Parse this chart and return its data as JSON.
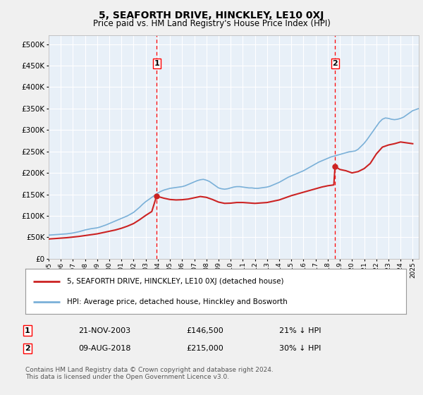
{
  "title": "5, SEAFORTH DRIVE, HINCKLEY, LE10 0XJ",
  "subtitle": "Price paid vs. HM Land Registry's House Price Index (HPI)",
  "yticks": [
    0,
    50000,
    100000,
    150000,
    200000,
    250000,
    300000,
    350000,
    400000,
    450000,
    500000
  ],
  "ytick_labels": [
    "£0",
    "£50K",
    "£100K",
    "£150K",
    "£200K",
    "£250K",
    "£300K",
    "£350K",
    "£400K",
    "£450K",
    "£500K"
  ],
  "xlim_start": 1995.0,
  "xlim_end": 2025.5,
  "ylim_min": 0,
  "ylim_max": 520000,
  "fig_bg_color": "#f0f0f0",
  "plot_bg_color": "#e8f0f8",
  "grid_color": "#ffffff",
  "hpi_color": "#7ab0d8",
  "price_color": "#cc2222",
  "marker1_year": 2003.9,
  "marker1_price": 146500,
  "marker2_year": 2018.6,
  "marker2_price": 215000,
  "legend_label_price": "5, SEAFORTH DRIVE, HINCKLEY, LE10 0XJ (detached house)",
  "legend_label_hpi": "HPI: Average price, detached house, Hinckley and Bosworth",
  "annotation1_label": "1",
  "annotation1_date": "21-NOV-2003",
  "annotation1_price": "£146,500",
  "annotation1_hpi": "21% ↓ HPI",
  "annotation2_label": "2",
  "annotation2_date": "09-AUG-2018",
  "annotation2_price": "£215,000",
  "annotation2_hpi": "30% ↓ HPI",
  "footer": "Contains HM Land Registry data © Crown copyright and database right 2024.\nThis data is licensed under the Open Government Licence v3.0.",
  "hpi_data": [
    [
      1995.0,
      55000
    ],
    [
      1995.25,
      55500
    ],
    [
      1995.5,
      56000
    ],
    [
      1995.75,
      56500
    ],
    [
      1996.0,
      57000
    ],
    [
      1996.25,
      57500
    ],
    [
      1996.5,
      58000
    ],
    [
      1996.75,
      59000
    ],
    [
      1997.0,
      60000
    ],
    [
      1997.25,
      61500
    ],
    [
      1997.5,
      63000
    ],
    [
      1997.75,
      65000
    ],
    [
      1998.0,
      67000
    ],
    [
      1998.25,
      68500
    ],
    [
      1998.5,
      70000
    ],
    [
      1998.75,
      71000
    ],
    [
      1999.0,
      72000
    ],
    [
      1999.25,
      74000
    ],
    [
      1999.5,
      76500
    ],
    [
      1999.75,
      79000
    ],
    [
      2000.0,
      82000
    ],
    [
      2000.25,
      85000
    ],
    [
      2000.5,
      88000
    ],
    [
      2000.75,
      91000
    ],
    [
      2001.0,
      94000
    ],
    [
      2001.25,
      97000
    ],
    [
      2001.5,
      100000
    ],
    [
      2001.75,
      104000
    ],
    [
      2002.0,
      108000
    ],
    [
      2002.25,
      114000
    ],
    [
      2002.5,
      120000
    ],
    [
      2002.75,
      127000
    ],
    [
      2003.0,
      133000
    ],
    [
      2003.25,
      138000
    ],
    [
      2003.5,
      143000
    ],
    [
      2003.75,
      148000
    ],
    [
      2004.0,
      153000
    ],
    [
      2004.25,
      157000
    ],
    [
      2004.5,
      160000
    ],
    [
      2004.75,
      162000
    ],
    [
      2005.0,
      164000
    ],
    [
      2005.25,
      165000
    ],
    [
      2005.5,
      166000
    ],
    [
      2005.75,
      167000
    ],
    [
      2006.0,
      168000
    ],
    [
      2006.25,
      170000
    ],
    [
      2006.5,
      173000
    ],
    [
      2006.75,
      176000
    ],
    [
      2007.0,
      179000
    ],
    [
      2007.25,
      182000
    ],
    [
      2007.5,
      184000
    ],
    [
      2007.75,
      185000
    ],
    [
      2008.0,
      183000
    ],
    [
      2008.25,
      180000
    ],
    [
      2008.5,
      175000
    ],
    [
      2008.75,
      170000
    ],
    [
      2009.0,
      165000
    ],
    [
      2009.25,
      163000
    ],
    [
      2009.5,
      162000
    ],
    [
      2009.75,
      163000
    ],
    [
      2010.0,
      165000
    ],
    [
      2010.25,
      167000
    ],
    [
      2010.5,
      168000
    ],
    [
      2010.75,
      168000
    ],
    [
      2011.0,
      167000
    ],
    [
      2011.25,
      166000
    ],
    [
      2011.5,
      165000
    ],
    [
      2011.75,
      165000
    ],
    [
      2012.0,
      164000
    ],
    [
      2012.25,
      164000
    ],
    [
      2012.5,
      165000
    ],
    [
      2012.75,
      166000
    ],
    [
      2013.0,
      167000
    ],
    [
      2013.25,
      169000
    ],
    [
      2013.5,
      172000
    ],
    [
      2013.75,
      175000
    ],
    [
      2014.0,
      178000
    ],
    [
      2014.25,
      182000
    ],
    [
      2014.5,
      186000
    ],
    [
      2014.75,
      190000
    ],
    [
      2015.0,
      193000
    ],
    [
      2015.25,
      196000
    ],
    [
      2015.5,
      199000
    ],
    [
      2015.75,
      202000
    ],
    [
      2016.0,
      205000
    ],
    [
      2016.25,
      209000
    ],
    [
      2016.5,
      213000
    ],
    [
      2016.75,
      217000
    ],
    [
      2017.0,
      221000
    ],
    [
      2017.25,
      225000
    ],
    [
      2017.5,
      228000
    ],
    [
      2017.75,
      231000
    ],
    [
      2018.0,
      234000
    ],
    [
      2018.25,
      237000
    ],
    [
      2018.5,
      239000
    ],
    [
      2018.75,
      241000
    ],
    [
      2019.0,
      243000
    ],
    [
      2019.25,
      245000
    ],
    [
      2019.5,
      247000
    ],
    [
      2019.75,
      249000
    ],
    [
      2020.0,
      250000
    ],
    [
      2020.25,
      251000
    ],
    [
      2020.5,
      255000
    ],
    [
      2020.75,
      262000
    ],
    [
      2021.0,
      269000
    ],
    [
      2021.25,
      278000
    ],
    [
      2021.5,
      288000
    ],
    [
      2021.75,
      298000
    ],
    [
      2022.0,
      308000
    ],
    [
      2022.25,
      318000
    ],
    [
      2022.5,
      325000
    ],
    [
      2022.75,
      328000
    ],
    [
      2023.0,
      327000
    ],
    [
      2023.25,
      325000
    ],
    [
      2023.5,
      324000
    ],
    [
      2023.75,
      325000
    ],
    [
      2024.0,
      327000
    ],
    [
      2024.25,
      330000
    ],
    [
      2024.5,
      335000
    ],
    [
      2024.75,
      340000
    ],
    [
      2025.0,
      345000
    ],
    [
      2025.5,
      350000
    ]
  ],
  "price_data": [
    [
      1995.0,
      46000
    ],
    [
      1995.5,
      47000
    ],
    [
      1996.0,
      48000
    ],
    [
      1996.5,
      49000
    ],
    [
      1997.0,
      50500
    ],
    [
      1997.5,
      52000
    ],
    [
      1998.0,
      54000
    ],
    [
      1998.5,
      56000
    ],
    [
      1999.0,
      58000
    ],
    [
      1999.5,
      61000
    ],
    [
      2000.0,
      64000
    ],
    [
      2000.5,
      67000
    ],
    [
      2001.0,
      71000
    ],
    [
      2001.5,
      76000
    ],
    [
      2002.0,
      82000
    ],
    [
      2002.5,
      91000
    ],
    [
      2003.0,
      101000
    ],
    [
      2003.5,
      110000
    ],
    [
      2003.9,
      146500
    ],
    [
      2004.0,
      145000
    ],
    [
      2004.5,
      141000
    ],
    [
      2005.0,
      138000
    ],
    [
      2005.5,
      137000
    ],
    [
      2006.0,
      137500
    ],
    [
      2006.5,
      139000
    ],
    [
      2007.0,
      142000
    ],
    [
      2007.5,
      145000
    ],
    [
      2008.0,
      143000
    ],
    [
      2008.5,
      138000
    ],
    [
      2009.0,
      132000
    ],
    [
      2009.5,
      129000
    ],
    [
      2010.0,
      129500
    ],
    [
      2010.5,
      131000
    ],
    [
      2011.0,
      131000
    ],
    [
      2011.5,
      130000
    ],
    [
      2012.0,
      129000
    ],
    [
      2012.5,
      130000
    ],
    [
      2013.0,
      131000
    ],
    [
      2013.5,
      134000
    ],
    [
      2014.0,
      137000
    ],
    [
      2014.5,
      142000
    ],
    [
      2015.0,
      147000
    ],
    [
      2015.5,
      151000
    ],
    [
      2016.0,
      155000
    ],
    [
      2016.5,
      159000
    ],
    [
      2017.0,
      163000
    ],
    [
      2017.5,
      167000
    ],
    [
      2018.0,
      170000
    ],
    [
      2018.5,
      172000
    ],
    [
      2018.6,
      215000
    ],
    [
      2019.0,
      208000
    ],
    [
      2019.5,
      205000
    ],
    [
      2020.0,
      200000
    ],
    [
      2020.5,
      203000
    ],
    [
      2021.0,
      210000
    ],
    [
      2021.5,
      222000
    ],
    [
      2022.0,
      244000
    ],
    [
      2022.5,
      260000
    ],
    [
      2023.0,
      265000
    ],
    [
      2023.5,
      268000
    ],
    [
      2024.0,
      272000
    ],
    [
      2024.5,
      270000
    ],
    [
      2025.0,
      268000
    ]
  ]
}
